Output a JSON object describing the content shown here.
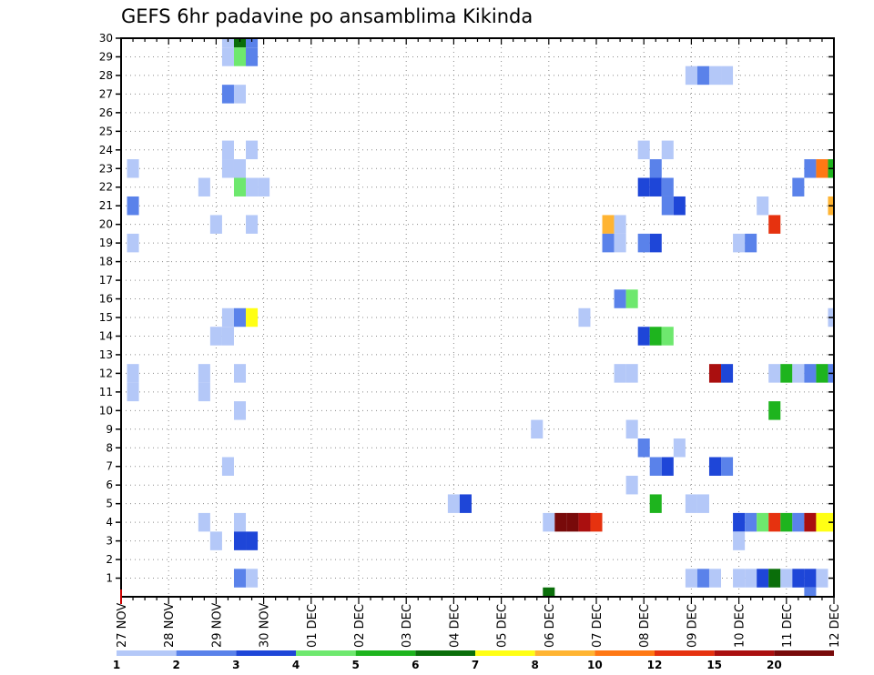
{
  "chart_data": {
    "type": "heatmap",
    "title": "GEFS 6hr padavine po ansamblima Kikinda",
    "xlabel": "",
    "ylabel": "",
    "x_tick_labels": [
      "27 NOV",
      "28 NOV",
      "29 NOV",
      "30 NOV",
      "01 DEC",
      "02 DEC",
      "03 DEC",
      "04 DEC",
      "05 DEC",
      "06 DEC",
      "07 DEC",
      "08 DEC",
      "09 DEC",
      "10 DEC",
      "11 DEC",
      "12 DEC"
    ],
    "x_step_unit": "6hr",
    "x_range_steps": [
      0,
      60
    ],
    "y_range": [
      0,
      30
    ],
    "y_ticks": [
      1,
      2,
      3,
      4,
      5,
      6,
      7,
      8,
      9,
      10,
      11,
      12,
      13,
      14,
      15,
      16,
      17,
      18,
      19,
      20,
      21,
      22,
      23,
      24,
      25,
      26,
      27,
      28,
      29,
      30
    ],
    "grid": true,
    "legend": {
      "placement": "bottom",
      "labels": [
        "1",
        "2",
        "3",
        "4",
        "5",
        "6",
        "7",
        "8",
        "10",
        "12",
        "15",
        "20"
      ],
      "colors": [
        "#b4c8f8",
        "#5a82ea",
        "#1e46d8",
        "#6ee86e",
        "#1eb41e",
        "#0a6e0a",
        "#ffff14",
        "#ffb432",
        "#ff7814",
        "#e6320f",
        "#aa0f0f",
        "#780a0a"
      ]
    },
    "cells": [
      [
        9,
        30,
        1
      ],
      [
        10,
        30,
        6
      ],
      [
        11,
        30,
        2
      ],
      [
        9,
        29,
        1
      ],
      [
        10,
        29,
        4
      ],
      [
        11,
        29,
        2
      ],
      [
        48,
        28,
        1
      ],
      [
        49,
        28,
        2
      ],
      [
        50,
        28,
        1
      ],
      [
        51,
        28,
        1
      ],
      [
        9,
        27,
        2
      ],
      [
        10,
        27,
        1
      ],
      [
        9,
        24,
        1
      ],
      [
        11,
        24,
        1
      ],
      [
        44,
        24,
        1
      ],
      [
        46,
        24,
        1
      ],
      [
        1,
        23,
        1
      ],
      [
        9,
        23,
        1
      ],
      [
        10,
        23,
        1
      ],
      [
        45,
        23,
        2
      ],
      [
        58,
        23,
        2
      ],
      [
        59,
        23,
        10
      ],
      [
        60,
        23,
        5
      ],
      [
        7,
        22,
        1
      ],
      [
        10,
        22,
        4
      ],
      [
        11,
        22,
        1
      ],
      [
        12,
        22,
        1
      ],
      [
        44,
        22,
        3
      ],
      [
        45,
        22,
        3
      ],
      [
        46,
        22,
        2
      ],
      [
        57,
        22,
        2
      ],
      [
        1,
        21,
        2
      ],
      [
        46,
        21,
        2
      ],
      [
        47,
        21,
        3
      ],
      [
        54,
        21,
        1
      ],
      [
        60,
        21,
        8
      ],
      [
        8,
        20,
        1
      ],
      [
        11,
        20,
        1
      ],
      [
        41,
        20,
        8
      ],
      [
        42,
        20,
        1
      ],
      [
        55,
        20,
        12
      ],
      [
        1,
        19,
        1
      ],
      [
        41,
        19,
        2
      ],
      [
        42,
        19,
        1
      ],
      [
        44,
        19,
        2
      ],
      [
        45,
        19,
        3
      ],
      [
        52,
        19,
        1
      ],
      [
        53,
        19,
        2
      ],
      [
        42,
        16,
        2
      ],
      [
        43,
        16,
        4
      ],
      [
        9,
        15,
        1
      ],
      [
        10,
        15,
        2
      ],
      [
        11,
        15,
        7
      ],
      [
        39,
        15,
        1
      ],
      [
        60,
        15,
        1
      ],
      [
        8,
        14,
        1
      ],
      [
        9,
        14,
        1
      ],
      [
        44,
        14,
        3
      ],
      [
        45,
        14,
        5
      ],
      [
        46,
        14,
        4
      ],
      [
        1,
        12,
        1
      ],
      [
        7,
        12,
        1
      ],
      [
        10,
        12,
        1
      ],
      [
        42,
        12,
        1
      ],
      [
        43,
        12,
        1
      ],
      [
        50,
        12,
        15
      ],
      [
        51,
        12,
        3
      ],
      [
        55,
        12,
        1
      ],
      [
        56,
        12,
        5
      ],
      [
        57,
        12,
        1
      ],
      [
        58,
        12,
        2
      ],
      [
        59,
        12,
        5
      ],
      [
        60,
        12,
        2
      ],
      [
        1,
        11,
        1
      ],
      [
        7,
        11,
        1
      ],
      [
        10,
        10,
        1
      ],
      [
        55,
        10,
        5
      ],
      [
        35,
        9,
        1
      ],
      [
        43,
        9,
        1
      ],
      [
        44,
        8,
        2
      ],
      [
        47,
        8,
        1
      ],
      [
        9,
        7,
        1
      ],
      [
        45,
        7,
        2
      ],
      [
        46,
        7,
        3
      ],
      [
        50,
        7,
        3
      ],
      [
        51,
        7,
        2
      ],
      [
        43,
        6,
        1
      ],
      [
        28,
        5,
        1
      ],
      [
        29,
        5,
        3
      ],
      [
        45,
        5,
        5
      ],
      [
        48,
        5,
        1
      ],
      [
        49,
        5,
        1
      ],
      [
        7,
        4,
        1
      ],
      [
        10,
        4,
        1
      ],
      [
        36,
        4,
        1
      ],
      [
        37,
        4,
        20
      ],
      [
        38,
        4,
        20
      ],
      [
        39,
        4,
        15
      ],
      [
        40,
        4,
        12
      ],
      [
        52,
        4,
        3
      ],
      [
        53,
        4,
        2
      ],
      [
        54,
        4,
        4
      ],
      [
        55,
        4,
        12
      ],
      [
        56,
        4,
        5
      ],
      [
        57,
        4,
        2
      ],
      [
        58,
        4,
        15
      ],
      [
        59,
        4,
        7
      ],
      [
        60,
        4,
        7
      ],
      [
        8,
        3,
        1
      ],
      [
        10,
        3,
        3
      ],
      [
        11,
        3,
        3
      ],
      [
        52,
        3,
        1
      ],
      [
        10,
        1,
        2
      ],
      [
        11,
        1,
        1
      ],
      [
        48,
        1,
        1
      ],
      [
        49,
        1,
        2
      ],
      [
        50,
        1,
        1
      ],
      [
        52,
        1,
        1
      ],
      [
        53,
        1,
        1
      ],
      [
        54,
        1,
        3
      ],
      [
        55,
        1,
        6
      ],
      [
        56,
        1,
        1
      ],
      [
        57,
        1,
        3
      ],
      [
        58,
        1,
        3
      ],
      [
        59,
        1,
        1
      ],
      [
        58,
        0,
        2
      ],
      [
        36,
        0,
        6
      ]
    ]
  }
}
